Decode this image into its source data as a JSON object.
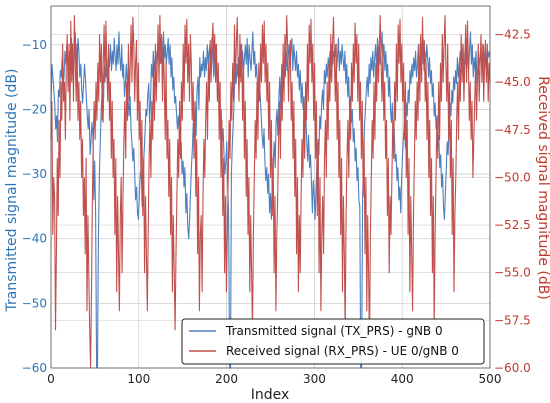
{
  "chart_data": {
    "type": "line",
    "xlabel": "Index",
    "ylabel_left": "Transmitted signal magnitude (dB)",
    "ylabel_right": "Received signal magnitude (dB)",
    "xlim": [
      0,
      500
    ],
    "ylim_left": [
      -60,
      -4
    ],
    "ylim_right": [
      -60,
      -41
    ],
    "x_ticks": [
      0,
      100,
      200,
      300,
      400,
      500
    ],
    "y_ticks_left": [
      -60,
      -50,
      -40,
      -30,
      -20,
      -10
    ],
    "y_ticks_right": [
      -60.0,
      -57.5,
      -55.0,
      -52.5,
      -50.0,
      -47.5,
      -45.0,
      -42.5
    ],
    "x_tick_labels": [
      "0",
      "100",
      "200",
      "300",
      "400",
      "500"
    ],
    "y_tick_labels_left": [
      "−60",
      "−50",
      "−40",
      "−30",
      "−20",
      "−10"
    ],
    "y_tick_labels_right": [
      "−60.0",
      "−57.5",
      "−55.0",
      "−52.5",
      "−50.0",
      "−47.5",
      "−45.0",
      "−42.5"
    ],
    "grid": true,
    "legend_position": "lower-right",
    "series": [
      {
        "name": "Transmitted signal (TX_PRS) - gNB 0",
        "axis": "left",
        "color": "#4c7fbf",
        "values": [
          -20,
          -13,
          -15,
          -17,
          -19,
          -23,
          -21,
          -25,
          -17,
          -18,
          -14,
          -15,
          -12,
          -16,
          -15,
          -11,
          -13,
          -10,
          -12,
          -16,
          -11,
          -14,
          -9,
          -13,
          -15,
          -10,
          -8,
          -12,
          -14,
          -9,
          -11,
          -15,
          -13,
          -17,
          -19,
          -16,
          -13,
          -15,
          -18,
          -21,
          -23,
          -20,
          -27,
          -25,
          -22,
          -24,
          -34,
          -28,
          -36,
          -60,
          -60,
          -40,
          -30,
          -25,
          -20,
          -17,
          -22,
          -15,
          -13,
          -15,
          -12,
          -15,
          -14,
          -13,
          -10,
          -14,
          -11,
          -13,
          -9,
          -12,
          -14,
          -10,
          -13,
          -8,
          -12,
          -14,
          -10,
          -15,
          -13,
          -18,
          -16,
          -13,
          -16,
          -19,
          -21,
          -18,
          -23,
          -25,
          -28,
          -26,
          -30,
          -34,
          -32,
          -36,
          -37,
          -33,
          -30,
          -29,
          -35,
          -31,
          -27,
          -24,
          -20,
          -21,
          -18,
          -16,
          -22,
          -19,
          -13,
          -15,
          -11,
          -14,
          -12,
          -13,
          -11,
          -12,
          -10,
          -13,
          -12,
          -9,
          -14,
          -8,
          -12,
          -10,
          -13,
          -11,
          -9,
          -13,
          -10,
          -15,
          -12,
          -17,
          -15,
          -19,
          -18,
          -21,
          -23,
          -21,
          -24,
          -27,
          -25,
          -30,
          -28,
          -32,
          -29,
          -36,
          -33,
          -38,
          -40,
          -37,
          -33,
          -29,
          -26,
          -22,
          -25,
          -19,
          -24,
          -17,
          -15,
          -20,
          -12,
          -15,
          -13,
          -14,
          -11,
          -15,
          -12,
          -14,
          -10,
          -13,
          -11,
          -10,
          -13,
          -9,
          -12,
          -15,
          -12,
          -10,
          -14,
          -18,
          -15,
          -19,
          -22,
          -20,
          -25,
          -23,
          -27,
          -30,
          -28,
          -25,
          -32,
          -36,
          -60,
          -60,
          -30,
          -25,
          -22,
          -18,
          -14,
          -16,
          -13,
          -15,
          -12,
          -15,
          -10,
          -13,
          -11,
          -14,
          -12,
          -10,
          -13,
          -9,
          -15,
          -10,
          -12,
          -14,
          -11,
          -8,
          -13,
          -11,
          -15,
          -13,
          -16,
          -19,
          -16,
          -18,
          -21,
          -24,
          -26,
          -23,
          -28,
          -31,
          -29,
          -33,
          -30,
          -36,
          -33,
          -37,
          -31,
          -28,
          -25,
          -29,
          -22,
          -20,
          -24,
          -18,
          -15,
          -20,
          -13,
          -17,
          -14,
          -12,
          -15,
          -11,
          -14,
          -12,
          -10,
          -13,
          -11,
          -9,
          -14,
          -10,
          -12,
          -14,
          -11,
          -15,
          -13,
          -17,
          -14,
          -19,
          -16,
          -20,
          -18,
          -23,
          -21,
          -25,
          -28,
          -24,
          -29,
          -27,
          -31,
          -36,
          -31,
          -33,
          -37,
          -32,
          -28,
          -25,
          -27,
          -21,
          -23,
          -19,
          -17,
          -20,
          -14,
          -16,
          -13,
          -15,
          -12,
          -14,
          -11,
          -15,
          -10,
          -13,
          -11,
          -12,
          -10,
          -14,
          -12,
          -9,
          -14,
          -11,
          -13,
          -10,
          -12,
          -14,
          -11,
          -16,
          -13,
          -18,
          -15,
          -20,
          -18,
          -22,
          -20,
          -25,
          -23,
          -28,
          -26,
          -31,
          -29,
          -34,
          -35,
          -60,
          -60,
          -34,
          -28,
          -23,
          -20,
          -17,
          -15,
          -18,
          -13,
          -16,
          -12,
          -14,
          -11,
          -15,
          -12,
          -10,
          -14,
          -9,
          -12,
          -10,
          -13,
          -11,
          -8,
          -12,
          -10,
          -14,
          -11,
          -15,
          -13,
          -18,
          -15,
          -20,
          -22,
          -19,
          -25,
          -23,
          -28,
          -27,
          -31,
          -29,
          -34,
          -32,
          -36,
          -31,
          -27,
          -24,
          -22,
          -26,
          -19,
          -21,
          -17,
          -19,
          -14,
          -16,
          -13,
          -15,
          -12,
          -14,
          -11,
          -15,
          -13,
          -10,
          -14,
          -12,
          -10,
          -13,
          -9,
          -14,
          -11,
          -13,
          -10,
          -12,
          -15,
          -12,
          -16,
          -14,
          -18,
          -16,
          -21,
          -19,
          -23,
          -21,
          -26,
          -24,
          -29,
          -27,
          -32,
          -30,
          -35,
          -37,
          -33,
          -29,
          -25,
          -27,
          -22,
          -19,
          -21,
          -17,
          -19,
          -15,
          -17,
          -14,
          -16,
          -12,
          -15,
          -13,
          -11,
          -14,
          -12,
          -10,
          -15,
          -11,
          -13,
          -9,
          -12,
          -14,
          -11,
          -8,
          -13,
          -10,
          -15,
          -12,
          -14,
          -11,
          -16,
          -14,
          -13,
          -12,
          -11,
          -13,
          -12,
          -10,
          -14,
          -12,
          -13,
          -11,
          -12,
          -11,
          -12
        ],
        "sample_step": 1
      },
      {
        "name": "Received signal (RX_PRS) - UE 0/gNB 0",
        "axis": "right",
        "color": "#c0504d",
        "values": [
          -48,
          -46,
          -53,
          -50,
          -51,
          -58,
          -54,
          -49,
          -52,
          -47,
          -50,
          -45,
          -47,
          -43,
          -46,
          -45,
          -48,
          -44,
          -42.5,
          -45.5,
          -43,
          -47,
          -41.8,
          -45,
          -43,
          -46,
          -41.5,
          -44,
          -46,
          -43,
          -47,
          -45,
          -48,
          -46,
          -50,
          -48,
          -52,
          -50,
          -54,
          -49,
          -57,
          -52,
          -55,
          -58,
          -60,
          -56,
          -51,
          -48,
          -46,
          -48,
          -45,
          -47,
          -44,
          -46,
          -42.5,
          -45,
          -43,
          -47,
          -44,
          -42,
          -45,
          -41.8,
          -44,
          -46,
          -43,
          -47,
          -45,
          -49,
          -46,
          -50,
          -48,
          -53,
          -49,
          -56,
          -51,
          -54,
          -57,
          -52,
          -50,
          -55,
          -51,
          -48,
          -46,
          -49,
          -45,
          -47,
          -43,
          -46,
          -44,
          -42,
          -45,
          -41.6,
          -43,
          -46,
          -44,
          -42.8,
          -47,
          -44,
          -48,
          -46,
          -50,
          -47,
          -52,
          -49,
          -55,
          -51,
          -54,
          -57,
          -53,
          -49,
          -47,
          -50,
          -46,
          -48,
          -44,
          -47,
          -43,
          -46,
          -44,
          -42,
          -45,
          -41.5,
          -44,
          -42.5,
          -46,
          -43,
          -45,
          -48,
          -44,
          -49,
          -47,
          -51,
          -48,
          -53,
          -50,
          -56,
          -52,
          -55,
          -58,
          -54,
          -51,
          -48,
          -50,
          -46,
          -49,
          -45,
          -47,
          -43,
          -46,
          -42,
          -44,
          -41.7,
          -45,
          -43,
          -46,
          -42.5,
          -44,
          -47,
          -45,
          -49,
          -46,
          -51,
          -48,
          -54,
          -50,
          -57,
          -53,
          -52,
          -56,
          -51,
          -48,
          -50,
          -47,
          -45,
          -48,
          -44,
          -46,
          -42.8,
          -45,
          -43,
          -41.9,
          -44,
          -42.5,
          -45,
          -43,
          -46,
          -44,
          -48,
          -45,
          -50,
          -47,
          -52,
          -49,
          -55,
          -51,
          -56,
          -53,
          -50,
          -47,
          -49,
          -45,
          -47,
          -44,
          -46,
          -42,
          -45,
          -43,
          -41.6,
          -44,
          -46,
          -42.5,
          -45,
          -43,
          -47,
          -44,
          -49,
          -46,
          -51,
          -48,
          -53,
          -50,
          -56,
          -52,
          -55,
          -58,
          -53,
          -50,
          -47,
          -49,
          -45,
          -48,
          -44,
          -46,
          -43,
          -45,
          -42,
          -44,
          -41.8,
          -45,
          -43,
          -46,
          -44,
          -48,
          -45,
          -50,
          -47,
          -52,
          -49,
          -55,
          -51,
          -57,
          -53,
          -51,
          -48,
          -46,
          -49,
          -45,
          -47,
          -43,
          -46,
          -42.5,
          -44,
          -41.5,
          -43,
          -46,
          -44,
          -42.8,
          -47,
          -45,
          -49,
          -46,
          -51,
          -48,
          -54,
          -50,
          -56,
          -52,
          -55,
          -51,
          -48,
          -50,
          -46,
          -49,
          -45,
          -47,
          -43,
          -46,
          -42,
          -44,
          -41.7,
          -45,
          -43,
          -47,
          -44,
          -49,
          -46,
          -52,
          -48,
          -55,
          -50,
          -57,
          -53,
          -51,
          -54,
          -49,
          -47,
          -50,
          -45,
          -48,
          -44,
          -46,
          -42.5,
          -45,
          -43,
          -41.6,
          -44,
          -46,
          -43,
          -48,
          -45,
          -50,
          -47,
          -53,
          -49,
          -56,
          -51,
          -54,
          -58,
          -52,
          -49,
          -47,
          -50,
          -46,
          -48,
          -44,
          -46,
          -43,
          -45,
          -41.9,
          -44,
          -42.5,
          -46,
          -43,
          -47,
          -45,
          -49,
          -46,
          -51,
          -48,
          -54,
          -50,
          -57,
          -52,
          -55,
          -59,
          -53,
          -50,
          -47,
          -49,
          -45,
          -48,
          -44,
          -46,
          -42.8,
          -45,
          -43,
          -41.5,
          -44,
          -46,
          -43,
          -47,
          -45,
          -49,
          -47,
          -52,
          -49,
          -55,
          -51,
          -53,
          -50,
          -47,
          -49,
          -45,
          -47,
          -43,
          -46,
          -42,
          -44,
          -41.7,
          -45,
          -43,
          -46,
          -44,
          -48,
          -45,
          -50,
          -47,
          -53,
          -49,
          -56,
          -51,
          -54,
          -57,
          -52,
          -49,
          -46,
          -48,
          -45,
          -47,
          -43,
          -46,
          -42.5,
          -45,
          -41.6,
          -44,
          -42.8,
          -46,
          -44,
          -48,
          -45,
          -50,
          -47,
          -52,
          -49,
          -55,
          -51,
          -58,
          -53,
          -50,
          -47,
          -49,
          -45,
          -48,
          -44,
          -46,
          -42.5,
          -45,
          -43,
          -41.5,
          -44,
          -46,
          -43,
          -48,
          -45,
          -50,
          -47,
          -53,
          -49,
          -56,
          -52,
          -50,
          -47,
          -45,
          -48,
          -44,
          -46,
          -42.5,
          -45,
          -43,
          -46,
          -44,
          -42,
          -45,
          -41.8,
          -44,
          -47,
          -45,
          -48,
          -46,
          -50,
          -48,
          -46,
          -44,
          -47,
          -45,
          -43,
          -46,
          -44,
          -42.5,
          -45,
          -43,
          -46,
          -44,
          -42.8,
          -45,
          -43,
          -46,
          -44,
          -45
        ],
        "sample_step": 1
      }
    ]
  },
  "colors": {
    "left_axis": "#2e75b6",
    "right_axis": "#c0392b",
    "grid": "#cfcfcf"
  }
}
